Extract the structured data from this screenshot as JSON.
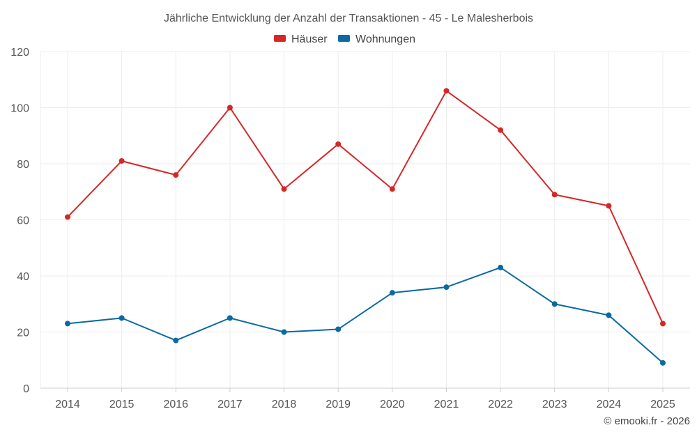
{
  "chart_data": {
    "type": "line",
    "title": "Jährliche Entwicklung der Anzahl der Transaktionen - 45 - Le Malesherbois",
    "categories": [
      "2014",
      "2015",
      "2016",
      "2017",
      "2018",
      "2019",
      "2020",
      "2021",
      "2022",
      "2023",
      "2024",
      "2025"
    ],
    "series": [
      {
        "name": "Häuser",
        "color": "#d62728",
        "values": [
          61,
          81,
          76,
          100,
          71,
          87,
          71,
          106,
          92,
          69,
          65,
          23
        ]
      },
      {
        "name": "Wohnungen",
        "color": "#0a6aa1",
        "values": [
          23,
          25,
          17,
          25,
          20,
          21,
          34,
          36,
          43,
          30,
          26,
          9
        ]
      }
    ],
    "ylim": [
      0,
      120
    ],
    "yticks": [
      0,
      20,
      40,
      60,
      80,
      100,
      120
    ],
    "grid": true,
    "legend": "top-center",
    "xlabel": "",
    "ylabel": ""
  },
  "credit": "© emooki.fr - 2026"
}
